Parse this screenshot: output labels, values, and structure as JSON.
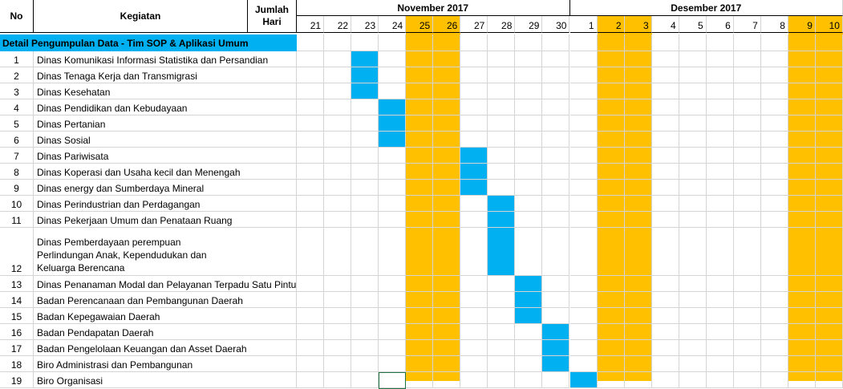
{
  "header": {
    "no": "No",
    "kegiatan": "Kegiatan",
    "jumlah_hari": "Jumlah Hari",
    "month_nov": "November 2017",
    "month_dec": "Desember 2017"
  },
  "days": [
    "21",
    "22",
    "23",
    "24",
    "25",
    "26",
    "27",
    "28",
    "29",
    "30",
    "1",
    "2",
    "3",
    "4",
    "5",
    "6",
    "7",
    "8",
    "9",
    "10"
  ],
  "weekend_days": [
    4,
    5,
    11,
    12,
    18,
    19
  ],
  "section_title": "Detail Pengumpulan Data - Tim SOP & Aplikasi Umum",
  "rows": [
    {
      "no": "1",
      "name": "Dinas Komunikasi Informasi Statistika dan Persandian",
      "task_days": [
        2
      ]
    },
    {
      "no": "2",
      "name": "Dinas Tenaga Kerja dan Transmigrasi",
      "task_days": [
        2
      ]
    },
    {
      "no": "3",
      "name": "Dinas Kesehatan",
      "task_days": [
        2
      ]
    },
    {
      "no": "4",
      "name": "Dinas Pendidikan dan Kebudayaan",
      "task_days": [
        3
      ]
    },
    {
      "no": "5",
      "name": "Dinas Pertanian",
      "task_days": [
        3
      ]
    },
    {
      "no": "6",
      "name": "Dinas Sosial",
      "task_days": [
        3
      ]
    },
    {
      "no": "7",
      "name": "Dinas Pariwisata",
      "task_days": [
        6
      ]
    },
    {
      "no": "8",
      "name": "Dinas Koperasi dan Usaha kecil dan Menengah",
      "task_days": [
        6
      ]
    },
    {
      "no": "9",
      "name": "Dinas energy dan Sumberdaya Mineral",
      "task_days": [
        6
      ]
    },
    {
      "no": "10",
      "name": "Dinas Perindustrian dan Perdagangan",
      "task_days": [
        7
      ]
    },
    {
      "no": "11",
      "name": "Dinas Pekerjaan Umum dan Penataan Ruang",
      "task_days": [
        7
      ]
    },
    {
      "no": "12",
      "name_lines": [
        "Dinas Pemberdayaan perempuan",
        "Perlindungan Anak, Kependudukan dan",
        "Keluarga Berencana"
      ],
      "task_days": [
        7
      ]
    },
    {
      "no": "13",
      "name": "Dinas Penanaman Modal dan Pelayanan Terpadu Satu Pintu",
      "task_days": [
        8
      ]
    },
    {
      "no": "14",
      "name": "Badan Perencanaan dan Pembangunan Daerah",
      "task_days": [
        8
      ]
    },
    {
      "no": "15",
      "name": "Badan Kepegawaian Daerah",
      "task_days": [
        8
      ]
    },
    {
      "no": "16",
      "name": "Badan Pendapatan Daerah",
      "task_days": [
        9
      ]
    },
    {
      "no": "17",
      "name": "Badan Pengelolaan Keuangan dan Asset Daerah",
      "task_days": [
        9
      ]
    },
    {
      "no": "18",
      "name": "Biro Administrasi dan Pembangunan",
      "task_days": [
        9
      ]
    },
    {
      "no": "19",
      "name": "Biro Organisasi",
      "task_days": [
        10
      ]
    }
  ],
  "colors": {
    "weekend": "#FFC000",
    "task": "#00B0F0",
    "section_bg": "#00B0F0",
    "grid": "#d4d4d4"
  }
}
